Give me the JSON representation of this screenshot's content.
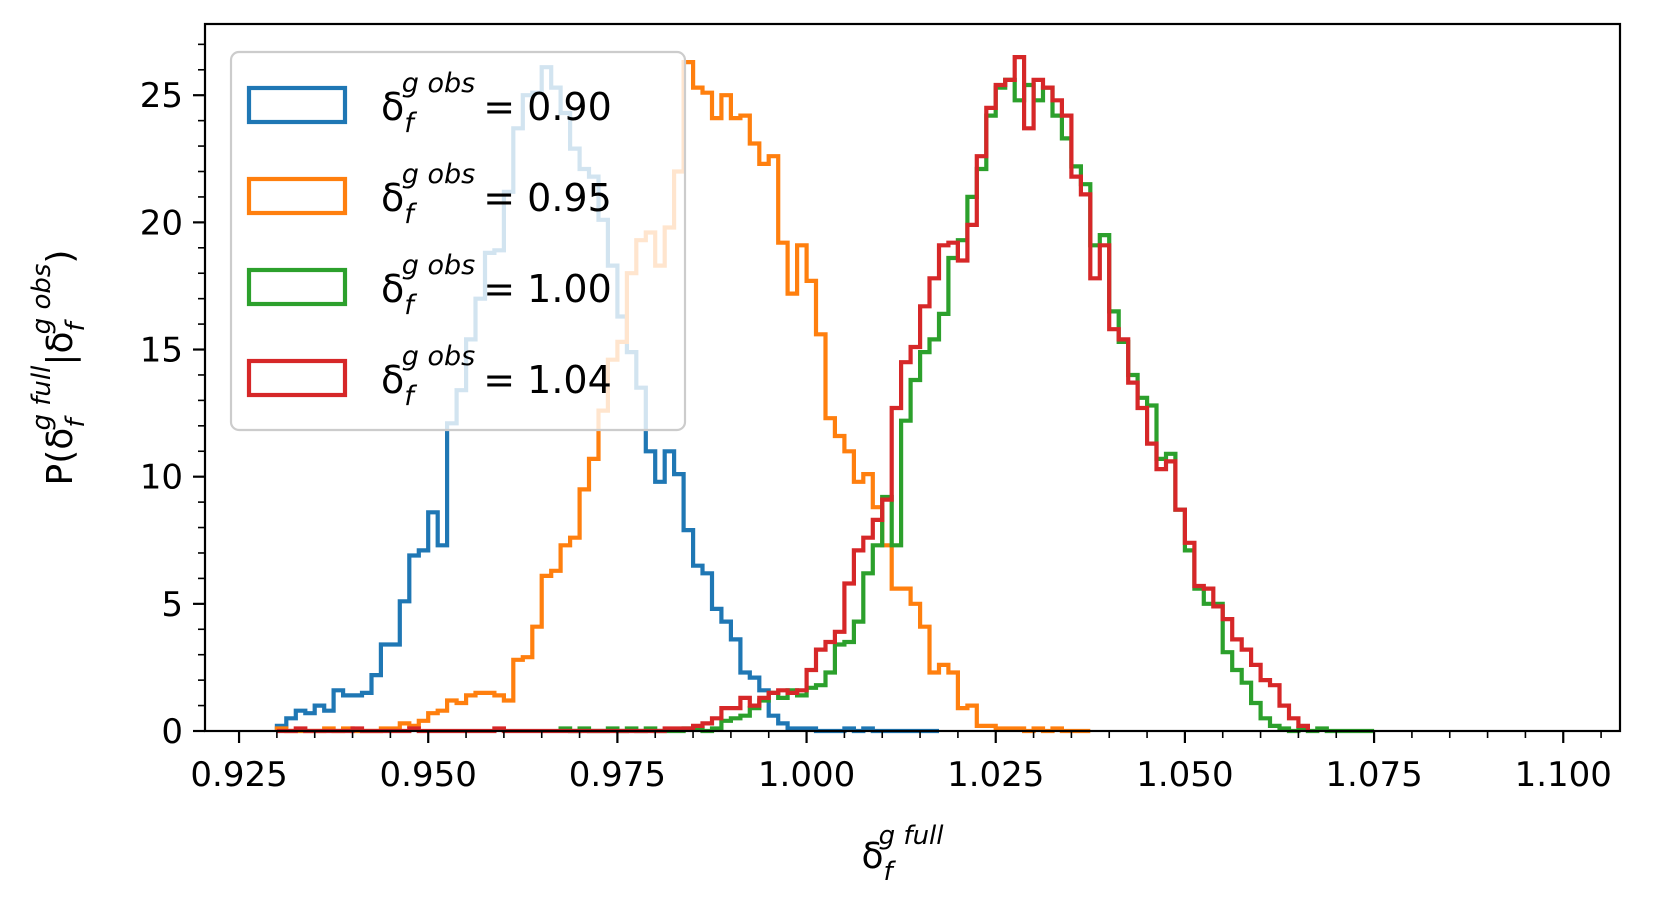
{
  "chart_data": {
    "type": "histogram",
    "xlabel": {
      "base": "δ",
      "sub": "f",
      "sup": "g full"
    },
    "ylabel": {
      "prefix": "P(",
      "base1": "δ",
      "sub1": "f",
      "sup1": "g full",
      "bar": "|",
      "base2": "δ",
      "sub2": "f",
      "sup2": "g obs",
      "suffix": ")"
    },
    "xlim": [
      0.9205,
      1.1075
    ],
    "ylim": [
      0,
      27.8
    ],
    "x_ticks": [
      0.925,
      0.95,
      0.975,
      1.0,
      1.025,
      1.05,
      1.075,
      1.1
    ],
    "x_tick_labels": [
      "0.925",
      "0.950",
      "0.975",
      "1.000",
      "1.025",
      "1.050",
      "1.075",
      "1.100"
    ],
    "y_ticks": [
      0,
      5,
      10,
      15,
      20,
      25
    ],
    "y_tick_labels": [
      "0",
      "5",
      "10",
      "15",
      "20",
      "25"
    ],
    "legend_position": "top-left",
    "series": [
      {
        "name": "= 0.90",
        "label": {
          "base": "δ",
          "sub": "f",
          "sup": "g obs",
          "text": "= 0.90"
        },
        "color": "#1f77b4",
        "bin_start": 0.93,
        "bin_width": 0.00125,
        "values": [
          0.2,
          0.5,
          0.8,
          0.7,
          1.0,
          0.8,
          1.6,
          1.4,
          1.4,
          1.5,
          2.2,
          3.4,
          3.4,
          5.1,
          6.9,
          7.1,
          8.6,
          7.3,
          12.1,
          13.4,
          15.4,
          17.0,
          18.8,
          18.9,
          21.2,
          23.7,
          25.0,
          25.1,
          26.1,
          25.3,
          24.3,
          22.9,
          22.1,
          21.8,
          20.1,
          18.3,
          16.3,
          14.9,
          13.5,
          11.0,
          9.8,
          11.0,
          10.1,
          7.9,
          6.5,
          6.2,
          4.8,
          4.3,
          3.6,
          2.3,
          2.1,
          1.6,
          0.6,
          0.3,
          0.1,
          0.1,
          0.1,
          0.0,
          0.0,
          0.0,
          0.1,
          0.0,
          0.1,
          0.0,
          0.0,
          0.0,
          0.0,
          0.0,
          0.0,
          0.0
        ]
      },
      {
        "name": "= 0.95",
        "label": {
          "base": "δ",
          "sub": "f",
          "sup": "g obs",
          "text": "= 0.95"
        },
        "color": "#ff7f0e",
        "bin_start": 0.93,
        "bin_width": 0.00125,
        "values": [
          0.1,
          0.0,
          0.0,
          0.0,
          0.0,
          0.1,
          0.0,
          0.1,
          0.0,
          0.0,
          0.0,
          0.1,
          0.1,
          0.3,
          0.2,
          0.4,
          0.7,
          0.8,
          1.2,
          1.1,
          1.4,
          1.5,
          1.5,
          1.4,
          1.2,
          2.8,
          2.9,
          4.1,
          6.1,
          6.3,
          7.3,
          7.6,
          9.5,
          10.7,
          12.6,
          14.6,
          15.3,
          18.0,
          19.3,
          19.6,
          18.3,
          19.8,
          22.0,
          26.3,
          25.3,
          25.1,
          24.1,
          25.0,
          24.1,
          24.2,
          23.1,
          22.3,
          22.6,
          19.2,
          17.2,
          19.1,
          17.7,
          15.6,
          12.3,
          11.6,
          11.0,
          9.8,
          10.1,
          8.8,
          7.3,
          5.6,
          5.6,
          5.0,
          4.1,
          2.3,
          2.6,
          2.3,
          0.9,
          1.0,
          0.2,
          0.2,
          0.1,
          0.1,
          0.1,
          0.0,
          0.1,
          0.0,
          0.1,
          0.0,
          0.0,
          0.0
        ]
      },
      {
        "name": "= 1.00",
        "label": {
          "base": "δ",
          "sub": "f",
          "sup": "g obs",
          "text": "= 1.00"
        },
        "color": "#2ca02c",
        "bin_start": 0.9675,
        "bin_width": 0.00125,
        "values": [
          0.1,
          0.0,
          0.1,
          0.0,
          0.0,
          0.1,
          0.0,
          0.1,
          0.0,
          0.1,
          0.0,
          0.0,
          0.0,
          0.1,
          0.1,
          0.0,
          0.1,
          0.4,
          0.5,
          0.6,
          0.9,
          1.2,
          1.5,
          1.3,
          1.6,
          1.4,
          1.7,
          1.8,
          2.3,
          3.4,
          3.5,
          4.3,
          6.2,
          7.3,
          9.2,
          7.3,
          12.2,
          13.8,
          14.9,
          15.4,
          16.4,
          18.6,
          19.3,
          21.0,
          22.1,
          24.2,
          25.3,
          25.6,
          24.8,
          25.4,
          24.8,
          25.3,
          24.2,
          23.3,
          22.2,
          21.5,
          19.1,
          19.5,
          16.5,
          15.3,
          14.0,
          13.1,
          12.8,
          10.7,
          10.9,
          8.7,
          7.1,
          5.6,
          5.0,
          5.0,
          3.1,
          2.4,
          1.9,
          1.1,
          0.5,
          0.2,
          0.1,
          0.0,
          0.1,
          0.0,
          0.1,
          0.0,
          0.0,
          0.0,
          0.0,
          0.0
        ]
      },
      {
        "name": "= 1.04",
        "label": {
          "base": "δ",
          "sub": "f",
          "sup": "g obs",
          "text": "= 1.04"
        },
        "color": "#d62728",
        "bin_start": 0.93,
        "bin_width": 0.00125,
        "values": [
          0.0,
          0.0,
          0.1,
          0.0,
          0.0,
          0.0,
          0.0,
          0.0,
          0.1,
          0.0,
          0.0,
          0.0,
          0.0,
          0.0,
          0.1,
          0.0,
          0.0,
          0.0,
          0.0,
          0.0,
          0.0,
          0.0,
          0.0,
          0.1,
          0.0,
          0.0,
          0.0,
          0.0,
          0.0,
          0.0,
          0.0,
          0.0,
          0.0,
          0.0,
          0.0,
          0.0,
          0.0,
          0.0,
          0.0,
          0.0,
          0.0,
          0.1,
          0.1,
          0.1,
          0.2,
          0.3,
          0.5,
          0.9,
          0.9,
          1.3,
          1.0,
          1.3,
          1.5,
          1.6,
          1.5,
          1.6,
          2.4,
          3.2,
          3.5,
          3.9,
          5.8,
          7.1,
          7.6,
          8.3,
          9.1,
          12.7,
          14.5,
          15.1,
          16.7,
          17.8,
          19.1,
          19.2,
          18.5,
          19.9,
          22.6,
          24.5,
          25.4,
          25.6,
          26.5,
          23.7,
          25.6,
          25.3,
          24.8,
          24.2,
          21.8,
          21.1,
          17.8,
          19.1,
          15.8,
          15.4,
          13.7,
          12.7,
          11.3,
          10.3,
          10.6,
          8.7,
          7.4,
          5.7,
          5.6,
          4.9,
          4.4,
          3.6,
          3.2,
          2.6,
          2.0,
          1.8,
          1.0,
          0.5,
          0.2
        ]
      }
    ]
  }
}
